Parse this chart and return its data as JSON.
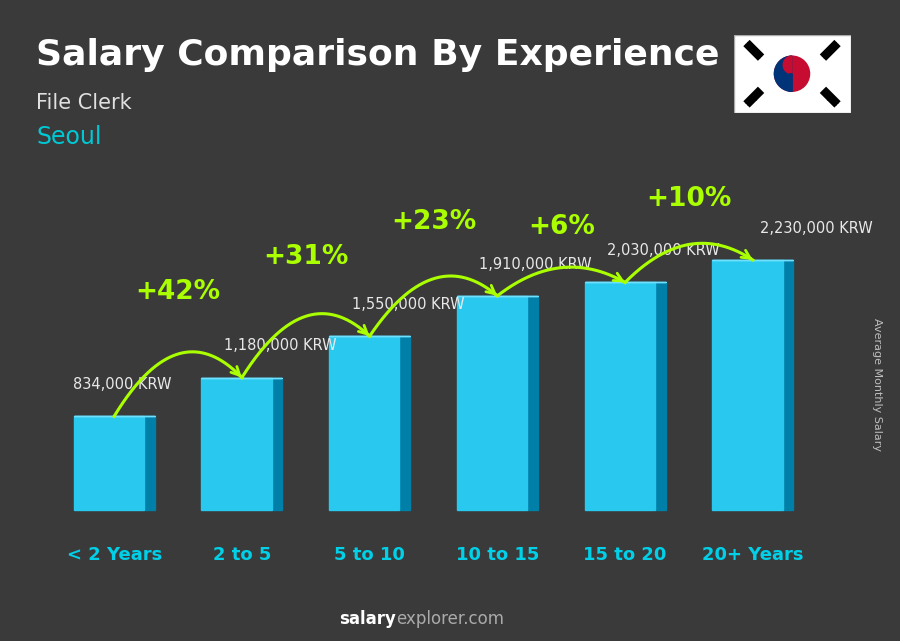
{
  "title": "Salary Comparison By Experience",
  "subtitle": "File Clerk",
  "city": "Seoul",
  "categories": [
    "< 2 Years",
    "2 to 5",
    "5 to 10",
    "10 to 15",
    "15 to 20",
    "20+ Years"
  ],
  "values": [
    834000,
    1180000,
    1550000,
    1910000,
    2030000,
    2230000
  ],
  "labels": [
    "834,000 KRW",
    "1,180,000 KRW",
    "1,550,000 KRW",
    "1,910,000 KRW",
    "2,030,000 KRW",
    "2,230,000 KRW"
  ],
  "pct_changes": [
    "+42%",
    "+31%",
    "+23%",
    "+6%",
    "+10%"
  ],
  "color_front": "#29c9ef",
  "color_side": "#0080a8",
  "color_top": "#70e0ff",
  "title_color": "#ffffff",
  "subtitle_color": "#e0e0e0",
  "city_color": "#00c8d4",
  "label_color": "#e8e8e8",
  "pct_color": "#aaff00",
  "cat_color": "#00d0e8",
  "footer_salary_color": "#ffffff",
  "footer_explorer_color": "#aaaaaa",
  "bg_color": "#3a3a3a",
  "ylabel": "Average Monthly Salary",
  "ylim_max": 2700000,
  "bar_width": 0.55,
  "depth_ratio": 0.15,
  "title_fontsize": 26,
  "subtitle_fontsize": 15,
  "city_fontsize": 17,
  "label_fontsize": 10.5,
  "pct_fontsize": 19,
  "cat_fontsize": 13,
  "footer_fontsize": 12,
  "ylabel_fontsize": 8
}
